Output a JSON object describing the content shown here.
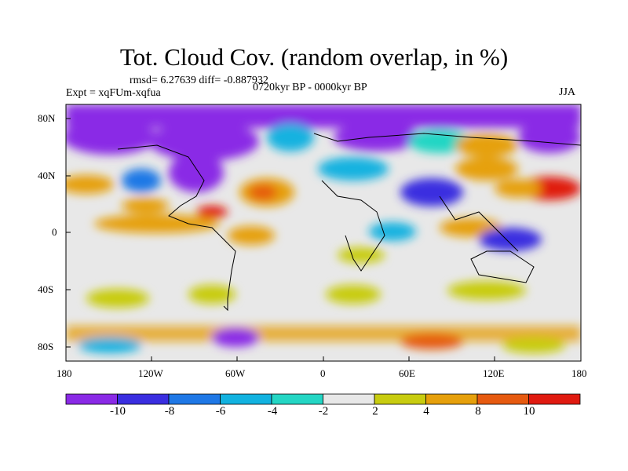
{
  "title": "Tot. Cloud Cov. (random overlap, in %)",
  "stats_line": "rmsd= 6.27639 diff= -0.887932",
  "left_label": "Expt = xqFUm-xqfua",
  "center_label": "0720kyr BP - 0000kyr BP",
  "right_label": "JJA",
  "lat_ticks": [
    "80N",
    "40N",
    "0",
    "40S",
    "80S"
  ],
  "lon_ticks": [
    "180",
    "120W",
    "60W",
    "0",
    "60E",
    "120E",
    "180"
  ],
  "colorbar": {
    "labels": [
      "-10",
      "-8",
      "-6",
      "-4",
      "-2",
      "2",
      "4",
      "8",
      "10"
    ],
    "colors": [
      "#8a2ae6",
      "#3a2ee0",
      "#1f78e6",
      "#12b2e0",
      "#24d6c4",
      "#e8e8e8",
      "#c8cc10",
      "#e6a00c",
      "#e65a10",
      "#e01a10"
    ]
  },
  "chart_data": {
    "type": "heatmap",
    "title": "Tot. Cloud Cov. (random overlap, in %)",
    "variable": "total cloud cover difference (%)",
    "season": "JJA",
    "experiment": "xqFUm-xqfua",
    "period": "0720kyr BP - 0000kyr BP",
    "rmsd": 6.27639,
    "diff": -0.887932,
    "xlim": [
      -180,
      180
    ],
    "ylim": [
      -90,
      90
    ],
    "contour_levels": [
      -10,
      -8,
      -6,
      -4,
      -2,
      2,
      4,
      8,
      10
    ]
  }
}
